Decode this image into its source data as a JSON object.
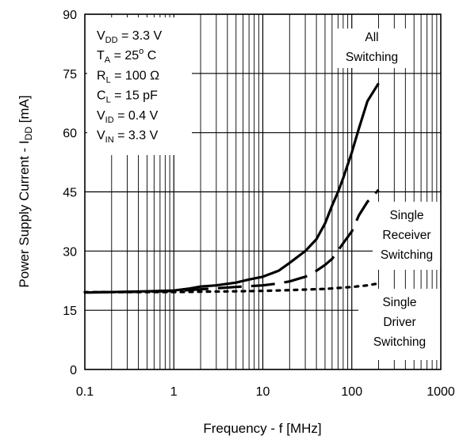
{
  "chart_data": {
    "type": "line",
    "xscale": "log",
    "xlim": [
      0.1,
      1000
    ],
    "ylim": [
      0,
      90
    ],
    "grid": true,
    "x_ticks": [
      "0.1",
      "1",
      "10",
      "100",
      "1000"
    ],
    "y_ticks": [
      "0",
      "15",
      "30",
      "45",
      "60",
      "75",
      "90"
    ],
    "xlabel": "Frequency - f [MHz]",
    "ylabel": {
      "prefix": "Power Supply Current - I",
      "sub": "DD",
      "suffix": " [mA]"
    },
    "conditions": [
      {
        "main": "V",
        "sub": "DD",
        "rest": " = 3.3 V"
      },
      {
        "main": "T",
        "sub": "A",
        "rest": " = 25",
        "sup": "o",
        "tail": " C"
      },
      {
        "main": "R",
        "sub": "L",
        "rest": " = 100 Ω"
      },
      {
        "main": "C",
        "sub": "L",
        "rest": " = 15 pF"
      },
      {
        "main": "V",
        "sub": "ID",
        "rest": " = 0.4 V"
      },
      {
        "main": "V",
        "sub": "IN",
        "rest": " = 3.3 V"
      }
    ],
    "series": [
      {
        "style": "solid",
        "label_lines": [
          "All",
          "Switching"
        ],
        "x": [
          0.1,
          0.2,
          0.5,
          1,
          1.5,
          2,
          3,
          5,
          7,
          10,
          15,
          20,
          30,
          40,
          50,
          60,
          70,
          80,
          100,
          120,
          150,
          200
        ],
        "y": [
          19.5,
          19.6,
          19.8,
          20.0,
          20.5,
          21.0,
          21.3,
          22.0,
          22.8,
          23.5,
          25.0,
          27.0,
          30.0,
          33.0,
          37.0,
          41.5,
          45.0,
          48.5,
          55.0,
          61.0,
          68.0,
          72.5
        ]
      },
      {
        "style": "dashed",
        "label_lines": [
          "Single",
          "Receiver",
          "Switching"
        ],
        "x": [
          0.1,
          0.2,
          0.5,
          1,
          2,
          5,
          10,
          15,
          20,
          30,
          40,
          50,
          60,
          80,
          100,
          120,
          150,
          200
        ],
        "y": [
          19.5,
          19.6,
          19.7,
          19.9,
          20.3,
          20.9,
          21.3,
          21.8,
          22.3,
          23.5,
          25.0,
          26.5,
          28.0,
          32.0,
          35.0,
          39.0,
          42.5,
          45.5
        ]
      },
      {
        "style": "dotted",
        "label_lines": [
          "Single",
          "Driver",
          "Switching"
        ],
        "x": [
          0.1,
          0.2,
          0.5,
          1,
          2,
          5,
          10,
          20,
          50,
          100,
          150,
          200
        ],
        "y": [
          19.6,
          19.6,
          19.6,
          19.6,
          19.7,
          19.8,
          19.9,
          20.1,
          20.4,
          20.9,
          21.3,
          21.8
        ]
      }
    ]
  }
}
